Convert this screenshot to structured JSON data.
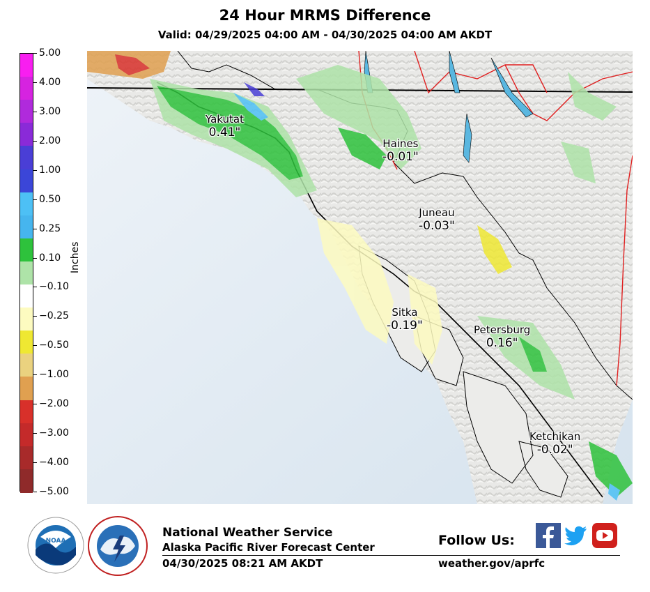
{
  "header": {
    "title": "24 Hour MRMS Difference",
    "subtitle": "Valid: 04/29/2025 04:00 AM - 04/30/2025 04:00 AM AKDT"
  },
  "colorbar": {
    "axis_title": "Inches",
    "labels": [
      "5.00",
      "4.00",
      "3.00",
      "2.00",
      "1.00",
      "0.50",
      "0.25",
      "0.10",
      "−0.10",
      "−0.25",
      "−0.50",
      "−1.00",
      "−2.00",
      "−3.00",
      "−4.00",
      "−5.00"
    ],
    "colors": [
      "#f81ef0",
      "#d623e0",
      "#b02adc",
      "#8a2ad8",
      "#4a3ed6",
      "#3b46d8",
      "#4dc0f5",
      "#46b5ee",
      "#2ec23c",
      "#aee3a8",
      "#ffffff",
      "#fdfbc0",
      "#efe832",
      "#ead27f",
      "#e0a050",
      "#d8302a",
      "#c42a2a",
      "#a82a2a",
      "#8f2a2a"
    ]
  },
  "map": {
    "cities": [
      {
        "name": "Yakutat",
        "value": "0.41\""
      },
      {
        "name": "Haines",
        "value": "-0.01\""
      },
      {
        "name": "Juneau",
        "value": "-0.03\""
      },
      {
        "name": "Sitka",
        "value": "-0.19\""
      },
      {
        "name": "Petersburg",
        "value": "0.16\""
      },
      {
        "name": "Ketchikan",
        "value": "-0.02\""
      }
    ]
  },
  "footer": {
    "org_name": "National Weather Service",
    "org_sub": "Alaska Pacific River Forecast Center",
    "timestamp": "04/30/2025 08:21 AM AKDT",
    "follow_label": "Follow Us:",
    "website": "weather.gov/aprfc",
    "noaa_logo_text": "NOAA",
    "noaa_ring_text": "NATIONAL OCEANIC AND ATMOSPHERIC ADMINISTRATION · U.S. DEPARTMENT OF COMMERCE",
    "nws_ring_text": "NATIONAL WEATHER SERVICE",
    "social": [
      {
        "icon": "facebook-icon",
        "color": "#3b5998"
      },
      {
        "icon": "twitter-icon",
        "color": "#1da1f2"
      },
      {
        "icon": "youtube-icon",
        "color": "#d0201c"
      }
    ]
  }
}
